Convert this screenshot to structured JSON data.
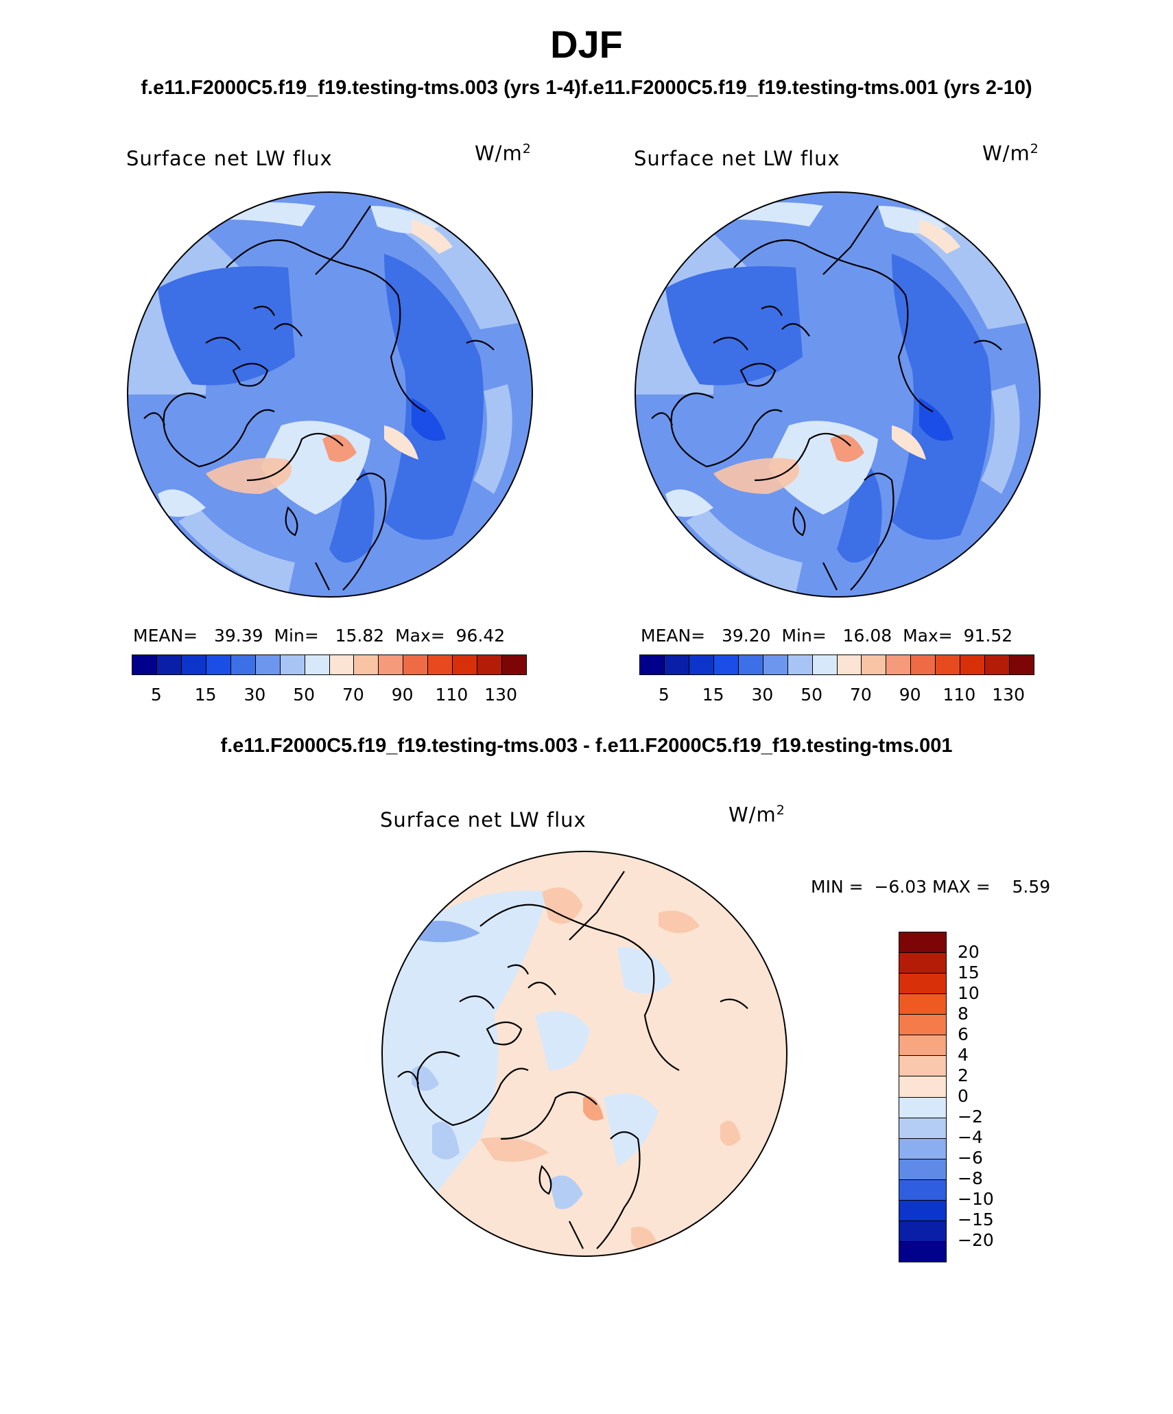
{
  "figure": {
    "title": "DJF",
    "subtitle_left": "f.e11.F2000C5.f19_f19.testing-tms.003 (yrs 1-4)",
    "subtitle_right": "f.e11.F2000C5.f19_f19.testing-tms.001 (yrs 2-10)",
    "diff_title": "f.e11.F2000C5.f19_f19.testing-tms.003 - f.e11.F2000C5.f19_f19.testing-tms.001"
  },
  "panels": [
    {
      "variable": "Surface net LW flux",
      "units": "W/m",
      "units_exp": "2",
      "mean_label": "MEAN=",
      "mean": "39.39",
      "min_label": "Min=",
      "min": "15.82",
      "max_label": "Max=",
      "max": "96.42"
    },
    {
      "variable": "Surface net LW flux",
      "units": "W/m",
      "units_exp": "2",
      "mean_label": "MEAN=",
      "mean": "39.20",
      "min_label": "Min=",
      "min": "16.08",
      "max_label": "Max=",
      "max": "91.52"
    }
  ],
  "diff_panel": {
    "variable": "Surface net LW flux",
    "units": "W/m",
    "units_exp": "2",
    "min_label": "MIN =",
    "min": "−6.03",
    "max_label": "MAX =",
    "max": "5.59"
  },
  "colorbar_abs": {
    "colors": [
      "#00008c",
      "#0a1fa8",
      "#0c35cc",
      "#1a4ee6",
      "#3d6fe6",
      "#6d96ee",
      "#a8c4f5",
      "#d8e8fb",
      "#fbe4d3",
      "#f9c3a6",
      "#f59a7a",
      "#ef6b45",
      "#e84a1f",
      "#d83008",
      "#b51c08",
      "#7d0505"
    ],
    "tick_labels": [
      "5",
      "15",
      "30",
      "50",
      "70",
      "90",
      "110",
      "130"
    ]
  },
  "colorbar_diff": {
    "colors": [
      "#7d0505",
      "#b51c08",
      "#d83008",
      "#ef5a22",
      "#f57c4a",
      "#f8a67f",
      "#f9c8ad",
      "#fbe4d3",
      "#d8e8fb",
      "#b4cdf5",
      "#8aaef0",
      "#5f8ae8",
      "#2f5fe0",
      "#0c35cc",
      "#0a1fa8",
      "#00008c"
    ],
    "tick_labels": [
      "20",
      "15",
      "10",
      "8",
      "6",
      "4",
      "2",
      "0",
      "−2",
      "−4",
      "−6",
      "−8",
      "−10",
      "−15",
      "−20"
    ]
  },
  "map": {
    "projection": "North polar stereographic",
    "land_outline_color": "#000000"
  }
}
